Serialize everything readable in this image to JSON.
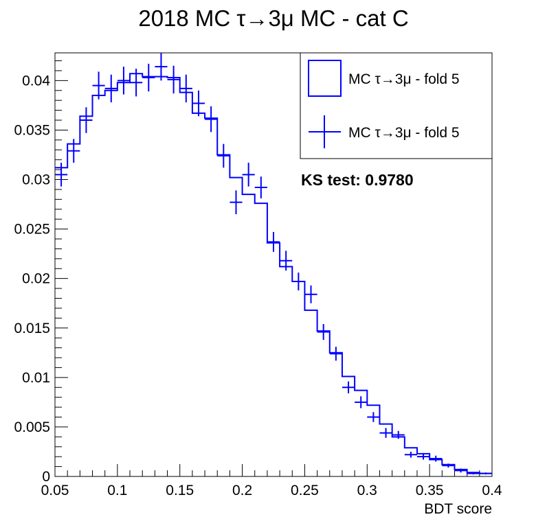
{
  "chart_data": {
    "type": "histogram",
    "title": "2018 MC τ→3μ MC - cat C",
    "xlabel": "BDT score",
    "ylabel": "",
    "xlim": [
      0.05,
      0.4
    ],
    "ylim": [
      0,
      0.0428
    ],
    "x_ticks": [
      "0.05",
      "0.1",
      "0.15",
      "0.2",
      "0.25",
      "0.3",
      "0.35",
      "0.4"
    ],
    "x_tick_values": [
      0.05,
      0.1,
      0.15,
      0.2,
      0.25,
      0.3,
      0.35,
      0.4
    ],
    "y_ticks": [
      "0",
      "0.005",
      "0.01",
      "0.015",
      "0.02",
      "0.025",
      "0.03",
      "0.035",
      "0.04"
    ],
    "y_tick_values": [
      0,
      0.005,
      0.01,
      0.015,
      0.02,
      0.025,
      0.03,
      0.035,
      0.04
    ],
    "bin_edges": [
      0.05,
      0.06,
      0.07,
      0.08,
      0.09,
      0.1,
      0.11,
      0.12,
      0.13,
      0.14,
      0.15,
      0.16,
      0.17,
      0.18,
      0.19,
      0.2,
      0.21,
      0.22,
      0.23,
      0.24,
      0.25,
      0.26,
      0.27,
      0.28,
      0.29,
      0.3,
      0.31,
      0.32,
      0.33,
      0.34,
      0.35,
      0.36,
      0.37,
      0.38,
      0.39,
      0.4
    ],
    "series": [
      {
        "name": "MC τ→3μ - fold 5",
        "style": "step",
        "color": "#0000ff",
        "values": [
          0.0312,
          0.0336,
          0.0364,
          0.0385,
          0.039,
          0.0398,
          0.0407,
          0.0404,
          0.0404,
          0.0403,
          0.0388,
          0.0367,
          0.0362,
          0.0325,
          0.0302,
          0.0285,
          0.0276,
          0.0236,
          0.0212,
          0.0197,
          0.0168,
          0.0147,
          0.0125,
          0.0101,
          0.0087,
          0.0072,
          0.0053,
          0.004,
          0.0029,
          0.0023,
          0.0017,
          0.0012,
          0.0007,
          0.0004,
          0.0003
        ]
      },
      {
        "name": "MC τ→3μ - fold 5",
        "style": "errorbar",
        "color": "#0000ff",
        "values": [
          0.0305,
          0.0329,
          0.036,
          0.0395,
          0.0392,
          0.04,
          0.0398,
          0.0403,
          0.0414,
          0.0401,
          0.0392,
          0.0377,
          0.0361,
          0.0324,
          0.0277,
          0.0305,
          0.0292,
          0.0237,
          0.0218,
          0.0197,
          0.0184,
          0.0146,
          0.0124,
          0.009,
          0.0075,
          0.006,
          0.0044,
          0.0042,
          0.0022,
          0.002,
          0.0018,
          0.0011,
          0.0006,
          0.0003,
          0.0003
        ],
        "errors": [
          0.0012,
          0.0012,
          0.0013,
          0.0014,
          0.0014,
          0.0014,
          0.0014,
          0.0014,
          0.0014,
          0.0014,
          0.0014,
          0.0013,
          0.0013,
          0.0012,
          0.0012,
          0.0012,
          0.0011,
          0.001,
          0.001,
          0.0009,
          0.0009,
          0.0008,
          0.0007,
          0.0006,
          0.0006,
          0.0005,
          0.0005,
          0.0004,
          0.0003,
          0.0003,
          0.0003,
          0.0002,
          0.0002,
          0.0001,
          0.0001
        ]
      }
    ],
    "annotation": "KS test: 0.9780",
    "legend_position": "top-right",
    "grid": false
  }
}
